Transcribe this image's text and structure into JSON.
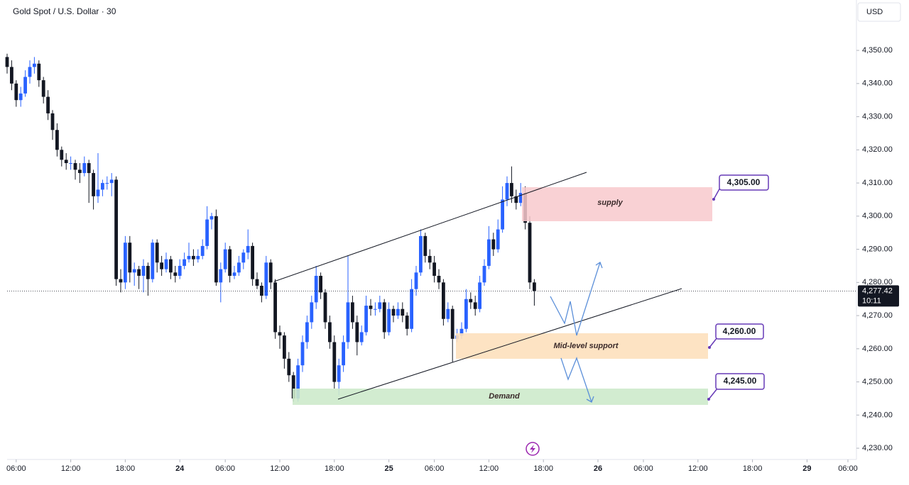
{
  "chart_data": {
    "type": "candlestick",
    "title": "Gold Spot / U.S. Dollar · 30",
    "currency": "USD",
    "up_color": "#2962ff",
    "down_color": "#131722",
    "xlim": [
      0,
      185
    ],
    "ylim": [
      4226.6,
      4365.2
    ],
    "xticks": [
      {
        "value": 2,
        "label": "06:00"
      },
      {
        "value": 14,
        "label": "12:00"
      },
      {
        "value": 26,
        "label": "18:00"
      },
      {
        "value": 38,
        "label": "24"
      },
      {
        "value": 48,
        "label": "06:00"
      },
      {
        "value": 60,
        "label": "12:00"
      },
      {
        "value": 72,
        "label": "18:00"
      },
      {
        "value": 84,
        "label": "25"
      },
      {
        "value": 94,
        "label": "06:00"
      },
      {
        "value": 106,
        "label": "12:00"
      },
      {
        "value": 118,
        "label": "18:00"
      },
      {
        "value": 130,
        "label": "26"
      },
      {
        "value": 140,
        "label": "06:00"
      },
      {
        "value": 152,
        "label": "12:00"
      },
      {
        "value": 164,
        "label": "18:00"
      },
      {
        "value": 176,
        "label": "29"
      },
      {
        "value": 185,
        "label": "06:00"
      }
    ],
    "yticks": [
      {
        "value": 4230,
        "label": "4,230.00"
      },
      {
        "value": 4240,
        "label": "4,240.00"
      },
      {
        "value": 4250,
        "label": "4,250.00"
      },
      {
        "value": 4260,
        "label": "4,260.00"
      },
      {
        "value": 4270,
        "label": "4,270.00"
      },
      {
        "value": 4280,
        "label": "4,280.00"
      },
      {
        "value": 4290,
        "label": "4,290.00"
      },
      {
        "value": 4300,
        "label": "4,300.00"
      },
      {
        "value": 4310,
        "label": "4,310.00"
      },
      {
        "value": 4320,
        "label": "4,320.00"
      },
      {
        "value": 4330,
        "label": "4,330.00"
      },
      {
        "value": 4340,
        "label": "4,340.00"
      },
      {
        "value": 4350,
        "label": "4,350.00"
      }
    ],
    "last_price_label": "4,277.42",
    "countdown": "10:11",
    "zones": {
      "supply": "supply",
      "mid": "Mid-level support",
      "demand": "Demand"
    },
    "price_labels": [
      "4,305.00",
      "4,260.00",
      "4,245.00"
    ],
    "ohlc": [
      [
        4348,
        4349,
        4343,
        4345
      ],
      [
        4345,
        4347,
        4338,
        4340
      ],
      [
        4340,
        4341,
        4333,
        4335
      ],
      [
        4335,
        4339,
        4333,
        4337
      ],
      [
        4337,
        4344,
        4336,
        4342
      ],
      [
        4342,
        4347,
        4340,
        4345
      ],
      [
        4345,
        4348,
        4343,
        4346
      ],
      [
        4346,
        4347,
        4339,
        4341
      ],
      [
        4341,
        4342,
        4334,
        4336
      ],
      [
        4336,
        4338,
        4329,
        4331
      ],
      [
        4331,
        4332,
        4323,
        4326
      ],
      [
        4326,
        4328,
        4318,
        4320
      ],
      [
        4320,
        4321,
        4315,
        4317
      ],
      [
        4317,
        4319,
        4314,
        4316
      ],
      [
        4316,
        4318,
        4314,
        4316
      ],
      [
        4316,
        4317,
        4311,
        4314
      ],
      [
        4314,
        4316,
        4310,
        4313
      ],
      [
        4313,
        4318,
        4312,
        4316
      ],
      [
        4316,
        4317,
        4304,
        4313
      ],
      [
        4313,
        4314,
        4302,
        4306
      ],
      [
        4306,
        4319,
        4304,
        4308
      ],
      [
        4308,
        4311,
        4306,
        4310
      ],
      [
        4310,
        4312,
        4308,
        4310
      ],
      [
        4310,
        4313,
        4306,
        4311
      ],
      [
        4311,
        4312,
        4279,
        4281
      ],
      [
        4281,
        4284,
        4277,
        4280
      ],
      [
        4280,
        4294,
        4278,
        4292
      ],
      [
        4292,
        4294,
        4280,
        4283
      ],
      [
        4283,
        4286,
        4279,
        4284
      ],
      [
        4284,
        4285,
        4278,
        4282
      ],
      [
        4282,
        4287,
        4277,
        4285
      ],
      [
        4285,
        4286,
        4276,
        4281
      ],
      [
        4281,
        4293,
        4280,
        4292
      ],
      [
        4292,
        4293,
        4283,
        4286
      ],
      [
        4286,
        4288,
        4282,
        4284
      ],
      [
        4284,
        4289,
        4283,
        4287
      ],
      [
        4287,
        4288,
        4281,
        4283
      ],
      [
        4283,
        4285,
        4280,
        4282
      ],
      [
        4282,
        4287,
        4281,
        4285
      ],
      [
        4285,
        4289,
        4284,
        4287
      ],
      [
        4287,
        4292,
        4286,
        4288
      ],
      [
        4288,
        4290,
        4285,
        4287
      ],
      [
        4287,
        4290,
        4286,
        4288
      ],
      [
        4288,
        4293,
        4287,
        4291
      ],
      [
        4291,
        4303,
        4290,
        4299
      ],
      [
        4299,
        4301,
        4296,
        4300
      ],
      [
        4300,
        4302,
        4279,
        4280
      ],
      [
        4280,
        4286,
        4274,
        4284
      ],
      [
        4284,
        4292,
        4283,
        4290
      ],
      [
        4290,
        4291,
        4280,
        4282
      ],
      [
        4282,
        4285,
        4281,
        4283
      ],
      [
        4283,
        4288,
        4282,
        4286
      ],
      [
        4286,
        4290,
        4284,
        4289
      ],
      [
        4289,
        4296,
        4287,
        4291
      ],
      [
        4291,
        4292,
        4279,
        4281
      ],
      [
        4281,
        4283,
        4278,
        4279
      ],
      [
        4279,
        4280,
        4274,
        4276
      ],
      [
        4276,
        4288,
        4275,
        4286
      ],
      [
        4286,
        4287,
        4278,
        4280
      ],
      [
        4280,
        4281,
        4263,
        4265
      ],
      [
        4265,
        4267,
        4260,
        4264
      ],
      [
        4264,
        4265,
        4254,
        4257
      ],
      [
        4257,
        4259,
        4250,
        4252
      ],
      [
        4252,
        4253,
        4244,
        4245
      ],
      [
        4245,
        4257,
        4244,
        4255
      ],
      [
        4255,
        4264,
        4253,
        4262
      ],
      [
        4262,
        4270,
        4260,
        4268
      ],
      [
        4268,
        4276,
        4266,
        4274
      ],
      [
        4274,
        4285,
        4272,
        4282
      ],
      [
        4282,
        4283,
        4275,
        4277
      ],
      [
        4277,
        4278,
        4266,
        4268
      ],
      [
        4268,
        4270,
        4260,
        4262
      ],
      [
        4262,
        4264,
        4248,
        4250
      ],
      [
        4250,
        4257,
        4246,
        4255
      ],
      [
        4255,
        4264,
        4253,
        4262
      ],
      [
        4262,
        4288,
        4260,
        4274
      ],
      [
        4274,
        4276,
        4266,
        4268
      ],
      [
        4268,
        4270,
        4258,
        4262
      ],
      [
        4262,
        4267,
        4261,
        4265
      ],
      [
        4265,
        4276,
        4264,
        4273
      ],
      [
        4273,
        4275,
        4270,
        4272
      ],
      [
        4272,
        4274,
        4270,
        4272
      ],
      [
        4272,
        4276,
        4271,
        4274
      ],
      [
        4274,
        4275,
        4263,
        4265
      ],
      [
        4265,
        4274,
        4264,
        4272
      ],
      [
        4272,
        4273,
        4268,
        4270
      ],
      [
        4270,
        4274,
        4269,
        4272
      ],
      [
        4272,
        4274,
        4268,
        4270
      ],
      [
        4270,
        4271,
        4264,
        4266
      ],
      [
        4266,
        4281,
        4265,
        4278
      ],
      [
        4278,
        4285,
        4276,
        4283
      ],
      [
        4283,
        4296,
        4282,
        4294
      ],
      [
        4294,
        4295,
        4286,
        4288
      ],
      [
        4288,
        4290,
        4284,
        4286
      ],
      [
        4286,
        4288,
        4280,
        4282
      ],
      [
        4282,
        4284,
        4278,
        4280
      ],
      [
        4280,
        4281,
        4267,
        4269
      ],
      [
        4269,
        4274,
        4268,
        4272
      ],
      [
        4272,
        4273,
        4256,
        4263
      ],
      [
        4263,
        4266,
        4262,
        4264
      ],
      [
        4264,
        4268,
        4263,
        4266
      ],
      [
        4266,
        4278,
        4265,
        4275
      ],
      [
        4275,
        4277,
        4272,
        4274
      ],
      [
        4274,
        4276,
        4270,
        4272
      ],
      [
        4272,
        4282,
        4271,
        4280
      ],
      [
        4280,
        4287,
        4279,
        4285
      ],
      [
        4285,
        4297,
        4284,
        4293
      ],
      [
        4293,
        4295,
        4288,
        4290
      ],
      [
        4290,
        4299,
        4289,
        4296
      ],
      [
        4296,
        4309,
        4295,
        4305
      ],
      [
        4305,
        4312,
        4303,
        4310
      ],
      [
        4310,
        4315,
        4304,
        4306
      ],
      [
        4306,
        4308,
        4302,
        4304
      ],
      [
        4304,
        4310,
        4303,
        4307
      ],
      [
        4307,
        4309,
        4296,
        4298
      ],
      [
        4298,
        4300,
        4278,
        4280
      ],
      [
        4280,
        4281,
        4273,
        4277.42
      ]
    ]
  }
}
